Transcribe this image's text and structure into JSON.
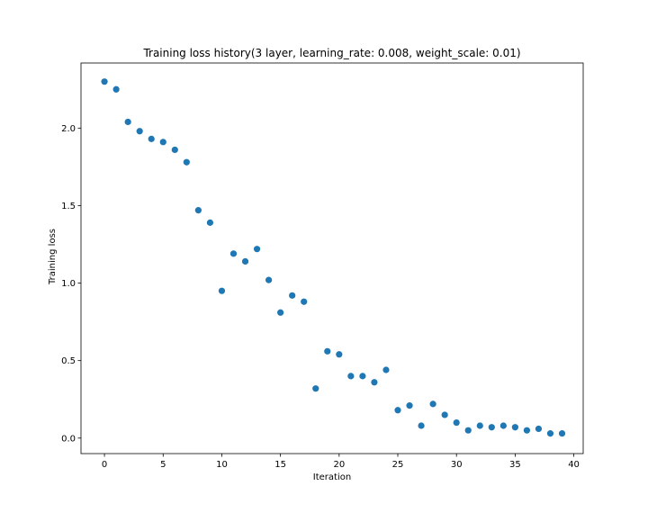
{
  "chart_data": {
    "type": "scatter",
    "title": "Training loss history(3 layer, learning_rate: 0.008, weight_scale: 0.01)",
    "xlabel": "Iteration",
    "ylabel": "Training loss",
    "xlim": [
      -2,
      40.8
    ],
    "ylim": [
      -0.1,
      2.42
    ],
    "xticks": [
      0,
      5,
      10,
      15,
      20,
      25,
      30,
      35,
      40
    ],
    "xtick_labels": [
      "0",
      "5",
      "10",
      "15",
      "20",
      "25",
      "30",
      "35",
      "40"
    ],
    "yticks": [
      0.0,
      0.5,
      1.0,
      1.5,
      2.0
    ],
    "ytick_labels": [
      "0.0",
      "0.5",
      "1.0",
      "1.5",
      "2.0"
    ],
    "grid": false,
    "marker_color": "#1f77b4",
    "x": [
      0,
      1,
      2,
      3,
      4,
      5,
      6,
      7,
      8,
      9,
      10,
      11,
      12,
      13,
      14,
      15,
      16,
      17,
      18,
      19,
      20,
      21,
      22,
      23,
      24,
      25,
      26,
      27,
      28,
      29,
      30,
      31,
      32,
      33,
      34,
      35,
      36,
      37,
      38,
      39
    ],
    "y": [
      2.3,
      2.25,
      2.04,
      1.98,
      1.93,
      1.91,
      1.86,
      1.78,
      1.47,
      1.39,
      0.95,
      1.19,
      1.14,
      1.22,
      1.02,
      0.81,
      0.92,
      0.88,
      0.32,
      0.56,
      0.54,
      0.4,
      0.4,
      0.36,
      0.44,
      0.18,
      0.21,
      0.08,
      0.22,
      0.15,
      0.1,
      0.05,
      0.08,
      0.07,
      0.08,
      0.07,
      0.05,
      0.06,
      0.03,
      0.03
    ]
  }
}
